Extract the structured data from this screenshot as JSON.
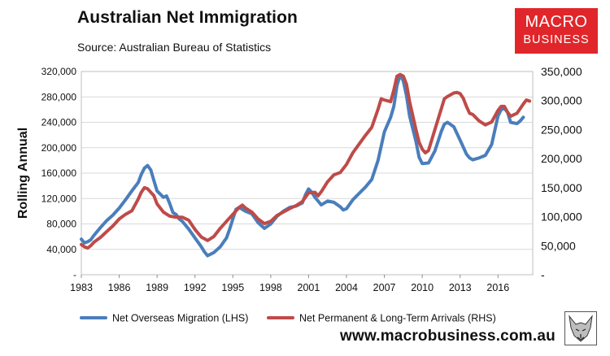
{
  "header": {
    "title": "Australian Net Immigration",
    "source": "Source: Australian Bureau of Statistics"
  },
  "logo": {
    "line1": "MACRO",
    "line2": "BUSINESS",
    "bg_color": "#e0262a"
  },
  "footer": {
    "url": "www.macrobusiness.com.au"
  },
  "chart_data": {
    "type": "line",
    "title": "Australian Net Immigration",
    "ylabel": "Rolling Annual",
    "xlabel": "",
    "grid": true,
    "x_ticks": [
      "1983",
      "1986",
      "1989",
      "1992",
      "1995",
      "1998",
      "2001",
      "2004",
      "2007",
      "2010",
      "2013",
      "2016"
    ],
    "x_range": [
      1983,
      2018.75
    ],
    "y_left": {
      "range": [
        0,
        320000
      ],
      "ticks": [
        0,
        40000,
        80000,
        120000,
        160000,
        200000,
        240000,
        280000,
        320000
      ],
      "tick_labels": [
        "-",
        "40,000",
        "80,000",
        "120,000",
        "160,000",
        "200,000",
        "240,000",
        "280,000",
        "320,000"
      ]
    },
    "y_right": {
      "range": [
        0,
        350000
      ],
      "ticks": [
        0,
        50000,
        100000,
        150000,
        200000,
        250000,
        300000,
        350000
      ],
      "tick_labels": [
        "-",
        "50,000",
        "100,000",
        "150,000",
        "200,000",
        "250,000",
        "300,000",
        "350,000"
      ]
    },
    "series": [
      {
        "name": "Net Overseas Migration (LHS)",
        "axis": "left",
        "color": "#4a7ebb",
        "points": [
          [
            1983.0,
            56000
          ],
          [
            1983.25,
            50000
          ],
          [
            1983.5,
            52000
          ],
          [
            1983.75,
            55000
          ],
          [
            1984.0,
            62000
          ],
          [
            1984.5,
            74000
          ],
          [
            1985.0,
            85000
          ],
          [
            1985.5,
            94000
          ],
          [
            1986.0,
            105000
          ],
          [
            1986.5,
            118000
          ],
          [
            1987.0,
            132000
          ],
          [
            1987.5,
            145000
          ],
          [
            1987.75,
            158000
          ],
          [
            1988.0,
            168000
          ],
          [
            1988.25,
            172000
          ],
          [
            1988.5,
            165000
          ],
          [
            1988.75,
            148000
          ],
          [
            1989.0,
            132000
          ],
          [
            1989.5,
            122000
          ],
          [
            1989.75,
            124000
          ],
          [
            1990.0,
            112000
          ],
          [
            1990.25,
            98000
          ],
          [
            1990.5,
            95000
          ],
          [
            1990.75,
            88000
          ],
          [
            1991.0,
            84000
          ],
          [
            1991.5,
            72000
          ],
          [
            1992.0,
            58000
          ],
          [
            1992.5,
            44000
          ],
          [
            1992.75,
            36000
          ],
          [
            1993.0,
            30000
          ],
          [
            1993.5,
            35000
          ],
          [
            1994.0,
            44000
          ],
          [
            1994.5,
            58000
          ],
          [
            1994.75,
            72000
          ],
          [
            1995.0,
            88000
          ],
          [
            1995.25,
            103000
          ],
          [
            1995.5,
            106000
          ],
          [
            1995.75,
            103000
          ],
          [
            1996.0,
            100000
          ],
          [
            1996.5,
            96000
          ],
          [
            1997.0,
            82000
          ],
          [
            1997.5,
            73000
          ],
          [
            1998.0,
            80000
          ],
          [
            1998.5,
            92000
          ],
          [
            1999.0,
            100000
          ],
          [
            1999.5,
            106000
          ],
          [
            2000.0,
            108000
          ],
          [
            2000.5,
            113000
          ],
          [
            2000.75,
            126000
          ],
          [
            2001.0,
            135000
          ],
          [
            2001.25,
            130000
          ],
          [
            2001.5,
            122000
          ],
          [
            2001.75,
            116000
          ],
          [
            2002.0,
            110000
          ],
          [
            2002.5,
            116000
          ],
          [
            2003.0,
            114000
          ],
          [
            2003.5,
            107000
          ],
          [
            2003.75,
            102000
          ],
          [
            2004.0,
            104000
          ],
          [
            2004.5,
            118000
          ],
          [
            2005.0,
            128000
          ],
          [
            2005.5,
            138000
          ],
          [
            2006.0,
            150000
          ],
          [
            2006.5,
            180000
          ],
          [
            2007.0,
            225000
          ],
          [
            2007.5,
            248000
          ],
          [
            2007.75,
            265000
          ],
          [
            2008.0,
            298000
          ],
          [
            2008.25,
            315000
          ],
          [
            2008.5,
            305000
          ],
          [
            2008.75,
            282000
          ],
          [
            2009.0,
            250000
          ],
          [
            2009.5,
            210000
          ],
          [
            2009.75,
            185000
          ],
          [
            2010.0,
            175000
          ],
          [
            2010.5,
            176000
          ],
          [
            2011.0,
            195000
          ],
          [
            2011.5,
            225000
          ],
          [
            2011.75,
            237000
          ],
          [
            2012.0,
            240000
          ],
          [
            2012.5,
            233000
          ],
          [
            2013.0,
            212000
          ],
          [
            2013.5,
            190000
          ],
          [
            2013.75,
            184000
          ],
          [
            2014.0,
            181000
          ],
          [
            2014.5,
            184000
          ],
          [
            2015.0,
            188000
          ],
          [
            2015.5,
            205000
          ],
          [
            2016.0,
            250000
          ],
          [
            2016.25,
            260000
          ],
          [
            2016.5,
            262000
          ],
          [
            2016.75,
            256000
          ],
          [
            2017.0,
            240000
          ],
          [
            2017.5,
            238000
          ],
          [
            2017.75,
            242000
          ],
          [
            2018.0,
            248000
          ]
        ]
      },
      {
        "name": "Net Permanent & Long-Term Arrivals (RHS)",
        "axis": "right",
        "color": "#be4b48",
        "points": [
          [
            1983.0,
            52000
          ],
          [
            1983.25,
            48000
          ],
          [
            1983.5,
            46000
          ],
          [
            1983.75,
            50000
          ],
          [
            1984.0,
            56000
          ],
          [
            1984.5,
            64000
          ],
          [
            1985.0,
            74000
          ],
          [
            1985.5,
            84000
          ],
          [
            1986.0,
            96000
          ],
          [
            1986.5,
            104000
          ],
          [
            1987.0,
            110000
          ],
          [
            1987.5,
            130000
          ],
          [
            1987.75,
            142000
          ],
          [
            1988.0,
            150000
          ],
          [
            1988.25,
            148000
          ],
          [
            1988.75,
            136000
          ],
          [
            1989.0,
            122000
          ],
          [
            1989.5,
            108000
          ],
          [
            1990.0,
            101000
          ],
          [
            1990.5,
            99000
          ],
          [
            1991.0,
            99000
          ],
          [
            1991.5,
            94000
          ],
          [
            1992.0,
            78000
          ],
          [
            1992.5,
            65000
          ],
          [
            1993.0,
            59000
          ],
          [
            1993.5,
            66000
          ],
          [
            1994.0,
            80000
          ],
          [
            1994.5,
            92000
          ],
          [
            1995.0,
            104000
          ],
          [
            1995.5,
            116000
          ],
          [
            1995.75,
            120000
          ],
          [
            1996.0,
            115000
          ],
          [
            1996.5,
            108000
          ],
          [
            1997.0,
            96000
          ],
          [
            1997.5,
            88000
          ],
          [
            1998.0,
            92000
          ],
          [
            1998.5,
            102000
          ],
          [
            1999.0,
            108000
          ],
          [
            1999.5,
            114000
          ],
          [
            2000.0,
            119000
          ],
          [
            2000.5,
            126000
          ],
          [
            2001.0,
            141000
          ],
          [
            2001.5,
            142000
          ],
          [
            2001.75,
            136000
          ],
          [
            2002.0,
            143000
          ],
          [
            2002.5,
            160000
          ],
          [
            2003.0,
            172000
          ],
          [
            2003.5,
            176000
          ],
          [
            2004.0,
            190000
          ],
          [
            2004.5,
            210000
          ],
          [
            2005.0,
            225000
          ],
          [
            2005.5,
            240000
          ],
          [
            2006.0,
            254000
          ],
          [
            2006.5,
            285000
          ],
          [
            2006.75,
            303000
          ],
          [
            2007.0,
            301000
          ],
          [
            2007.5,
            298000
          ],
          [
            2007.75,
            318000
          ],
          [
            2008.0,
            342000
          ],
          [
            2008.25,
            345000
          ],
          [
            2008.5,
            342000
          ],
          [
            2008.75,
            328000
          ],
          [
            2009.0,
            298000
          ],
          [
            2009.5,
            250000
          ],
          [
            2009.75,
            228000
          ],
          [
            2010.0,
            216000
          ],
          [
            2010.25,
            210000
          ],
          [
            2010.5,
            214000
          ],
          [
            2011.0,
            250000
          ],
          [
            2011.5,
            285000
          ],
          [
            2011.75,
            303000
          ],
          [
            2012.0,
            307000
          ],
          [
            2012.5,
            313000
          ],
          [
            2012.75,
            314000
          ],
          [
            2013.0,
            312000
          ],
          [
            2013.25,
            304000
          ],
          [
            2013.5,
            290000
          ],
          [
            2013.75,
            278000
          ],
          [
            2014.0,
            276000
          ],
          [
            2014.5,
            265000
          ],
          [
            2015.0,
            258000
          ],
          [
            2015.5,
            263000
          ],
          [
            2016.0,
            283000
          ],
          [
            2016.25,
            290000
          ],
          [
            2016.5,
            290000
          ],
          [
            2016.75,
            280000
          ],
          [
            2017.0,
            273000
          ],
          [
            2017.5,
            278000
          ],
          [
            2017.75,
            286000
          ],
          [
            2018.0,
            294000
          ],
          [
            2018.25,
            301000
          ],
          [
            2018.5,
            299000
          ]
        ]
      }
    ],
    "legend": {
      "placement": "bottom",
      "entries": [
        "Net Overseas Migration (LHS)",
        "Net Permanent & Long-Term Arrivals (RHS)"
      ]
    }
  }
}
